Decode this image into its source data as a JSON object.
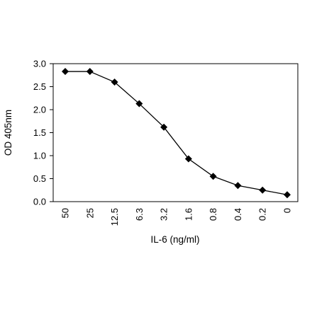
{
  "chart_data": {
    "type": "line",
    "title": "",
    "xlabel": "IL-6 (ng/ml)",
    "ylabel": "OD 405nm",
    "categories": [
      "50",
      "25",
      "12.5",
      "6.3",
      "3.2",
      "1.6",
      "0.8",
      "0.4",
      "0.2",
      "0"
    ],
    "series": [
      {
        "values": [
          2.83,
          2.83,
          2.6,
          2.13,
          1.62,
          0.93,
          0.55,
          0.35,
          0.25,
          0.15
        ]
      }
    ],
    "ylim": [
      0,
      3
    ],
    "yticks": [
      "0.0",
      "0.5",
      "1.0",
      "1.5",
      "2.0",
      "2.5",
      "3.0"
    ],
    "marker": "diamond",
    "grid": false,
    "colors": {
      "line": "#000000",
      "marker": "#000000",
      "axis": "#000000"
    }
  }
}
